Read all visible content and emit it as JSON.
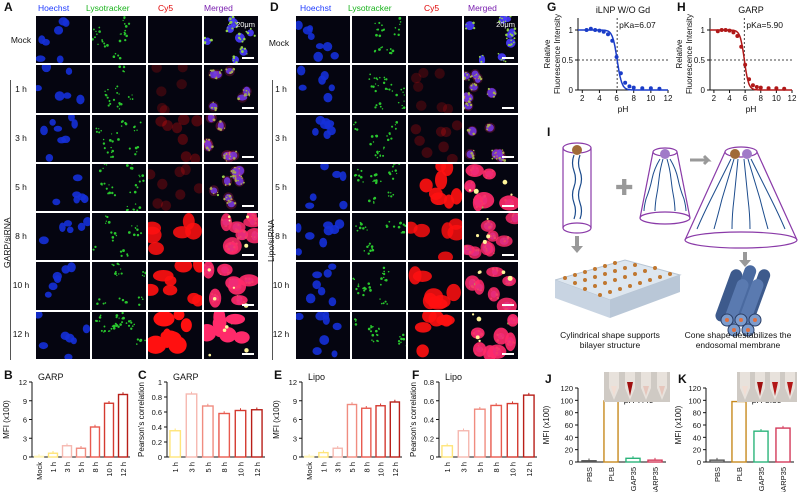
{
  "panels": {
    "A": "A",
    "B": "B",
    "C": "C",
    "D": "D",
    "E": "E",
    "F": "F",
    "G": "G",
    "H": "H",
    "I": "I",
    "J": "J",
    "K": "K"
  },
  "channels": [
    "Hoechst",
    "Lysotracker",
    "Cy5",
    "Merged"
  ],
  "channel_colors": [
    "#1f3bff",
    "#18b31b",
    "#e00000",
    "#7a1fb0"
  ],
  "rows": [
    "Mock",
    "1 h",
    "3 h",
    "5 h",
    "8 h",
    "10 h",
    "12 h"
  ],
  "scale_label": "20μm",
  "group_A": "GARP/siRNA",
  "group_D": "Lipo/siRNA",
  "chart_data": [
    {
      "id": "B",
      "type": "bar",
      "title": "GARP",
      "ylabel": "MFI (x100)",
      "categories": [
        "Mock",
        "1 h",
        "3 h",
        "5 h",
        "8 h",
        "10 h",
        "12 h"
      ],
      "values": [
        0.1,
        0.6,
        1.8,
        1.4,
        4.8,
        8.6,
        10.0
      ],
      "ylim": [
        0,
        12
      ],
      "yticks": [
        0,
        3,
        6,
        9,
        12
      ],
      "colors": [
        "#fff3b0",
        "#ffe57a",
        "#f6b8b0",
        "#f08c80",
        "#e85a4f",
        "#d43a30",
        "#b81e18"
      ]
    },
    {
      "id": "C",
      "type": "bar",
      "title": "GARP",
      "ylabel": "Pearson's correlation",
      "categories": [
        "1 h",
        "3 h",
        "5 h",
        "8 h",
        "10 h",
        "12 h"
      ],
      "values": [
        0.35,
        0.84,
        0.68,
        0.58,
        0.62,
        0.63
      ],
      "ylim": [
        0,
        1.0
      ],
      "yticks": [
        0,
        0.2,
        0.4,
        0.6,
        0.8,
        1.0
      ],
      "colors": [
        "#ffe57a",
        "#f6b8b0",
        "#f08c80",
        "#e85a4f",
        "#d43a30",
        "#b81e18"
      ]
    },
    {
      "id": "E",
      "type": "bar",
      "title": "Lipo",
      "ylabel": "MFI (x100)",
      "categories": [
        "Mock",
        "1 h",
        "3 h",
        "5 h",
        "8 h",
        "10 h",
        "12 h"
      ],
      "values": [
        0.1,
        0.7,
        1.4,
        8.4,
        7.8,
        8.2,
        8.8
      ],
      "ylim": [
        0,
        12
      ],
      "yticks": [
        0,
        3,
        6,
        9,
        12
      ],
      "colors": [
        "#fff3b0",
        "#ffe57a",
        "#f6b8b0",
        "#f08c80",
        "#e85a4f",
        "#d43a30",
        "#b81e18"
      ]
    },
    {
      "id": "F",
      "type": "bar",
      "title": "Lipo",
      "ylabel": "Pearson's correlation",
      "categories": [
        "1 h",
        "3 h",
        "5 h",
        "8 h",
        "10 h",
        "12 h"
      ],
      "values": [
        0.12,
        0.28,
        0.51,
        0.55,
        0.57,
        0.66
      ],
      "ylim": [
        0,
        0.8
      ],
      "yticks": [
        0,
        0.2,
        0.4,
        0.6,
        0.8
      ],
      "colors": [
        "#ffe57a",
        "#f6b8b0",
        "#f08c80",
        "#e85a4f",
        "#d43a30",
        "#b81e18"
      ]
    },
    {
      "id": "G",
      "type": "scatter",
      "title": "iLNP W/O Gd",
      "ylabel": "Relative Fluorescence Intensity",
      "xlabel": "pH",
      "annotation": "pKa=6.07",
      "pka": 6.07,
      "x": [
        2.5,
        3,
        3.5,
        4,
        4.5,
        5,
        5.5,
        6,
        6.5,
        7,
        7.5,
        8,
        9,
        10,
        11
      ],
      "y": [
        1.0,
        1.02,
        1.0,
        0.99,
        0.97,
        0.93,
        0.82,
        0.55,
        0.28,
        0.12,
        0.06,
        0.04,
        0.03,
        0.03,
        0.02
      ],
      "xlim": [
        1.5,
        12
      ],
      "ylim": [
        0,
        1.2
      ],
      "xticks": [
        2,
        4,
        6,
        8,
        10,
        12
      ],
      "yticks": [
        0,
        0.5,
        1.0
      ],
      "color": "#1a3cc8"
    },
    {
      "id": "H",
      "type": "scatter",
      "title": "GARP",
      "ylabel": "Relative Fluorescence Intensity",
      "xlabel": "pH",
      "annotation": "pKa=5.90",
      "pka": 5.9,
      "x": [
        2.5,
        3,
        3.5,
        4,
        4.5,
        5,
        5.5,
        6,
        6.5,
        7,
        7.5,
        8,
        9,
        10,
        11
      ],
      "y": [
        0.98,
        1.0,
        1.0,
        0.99,
        0.96,
        0.9,
        0.72,
        0.42,
        0.18,
        0.08,
        0.05,
        0.04,
        0.03,
        0.03,
        0.02
      ],
      "xlim": [
        1.5,
        12
      ],
      "ylim": [
        0,
        1.2
      ],
      "xticks": [
        2,
        4,
        6,
        8,
        10,
        12
      ],
      "yticks": [
        0,
        0.5,
        1.0
      ],
      "color": "#b01818"
    },
    {
      "id": "J",
      "type": "bar",
      "ylabel": "MFI (x100)",
      "annotation": "pH 7.40",
      "categories": [
        "PBS",
        "PLB",
        "GAP35",
        "GARP35"
      ],
      "values": [
        2,
        99,
        6,
        3
      ],
      "ylim": [
        0,
        120
      ],
      "yticks": [
        0,
        20,
        40,
        60,
        80,
        100,
        120
      ],
      "colors": [
        "#555555",
        "#c78a1e",
        "#2bb47a",
        "#d43a5a"
      ]
    },
    {
      "id": "K",
      "type": "bar",
      "ylabel": "MFI (x100)",
      "annotation": "pH 5.50",
      "categories": [
        "PBS",
        "PLB",
        "GAP35",
        "GARP35"
      ],
      "values": [
        3,
        98,
        50,
        55
      ],
      "ylim": [
        0,
        120
      ],
      "yticks": [
        0,
        20,
        40,
        60,
        80,
        100,
        120
      ],
      "colors": [
        "#555555",
        "#c78a1e",
        "#2bb47a",
        "#d43a5a"
      ]
    }
  ],
  "schematic": {
    "caption_left": "Cylindrical shape supports bilayer structure",
    "caption_right": "Cone shape destabilizes the endosomal membrane"
  }
}
